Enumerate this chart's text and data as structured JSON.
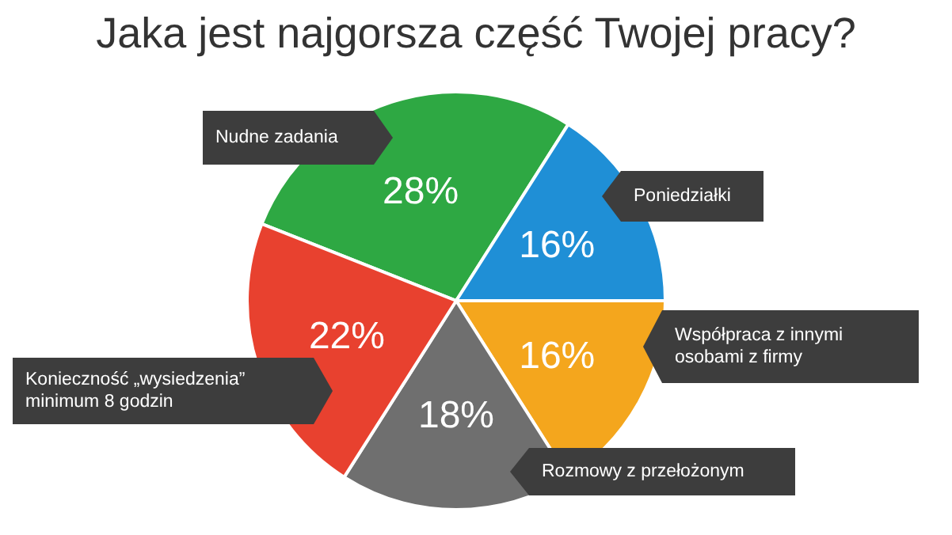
{
  "chart_data": {
    "type": "pie",
    "title": "Jaka jest najgorsza część Twojej pracy?",
    "categories": [
      "Nudne zadania",
      "Poniedziałki",
      "Współpraca z innymi osobami z firmy",
      "Rozmowy z przełożonym",
      "Konieczność „wysiedzenia” minimum 8 godzin"
    ],
    "values": [
      28,
      16,
      16,
      18,
      22
    ],
    "value_labels": [
      "28%",
      "16%",
      "16%",
      "18%",
      "22%"
    ],
    "colors": [
      "#2ea843",
      "#1f8fd6",
      "#f4a61d",
      "#6f6f6f",
      "#e8412f"
    ]
  }
}
